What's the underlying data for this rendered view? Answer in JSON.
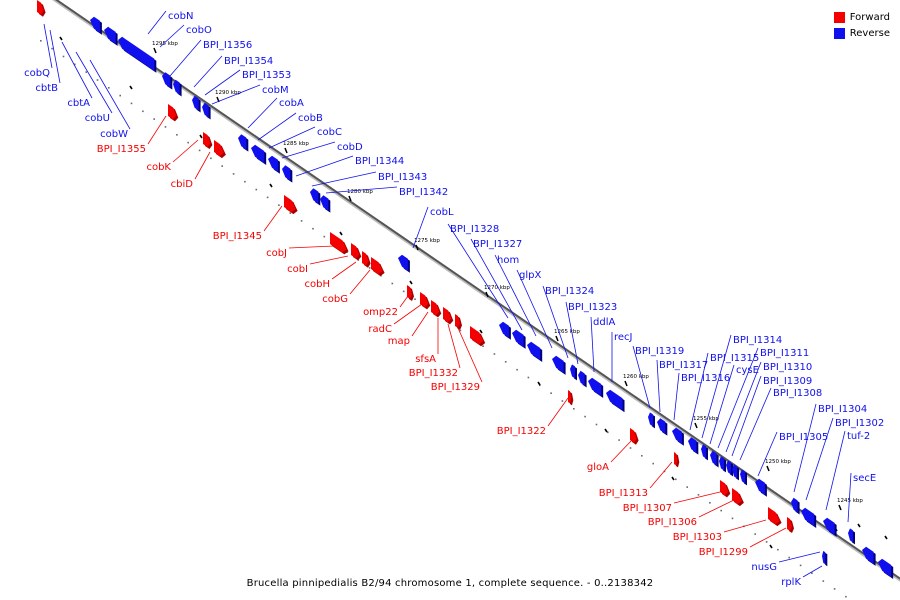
{
  "colors": {
    "forward": "#f50000",
    "reverse": "#1010ee",
    "axis": "#555555"
  },
  "legend": [
    {
      "label": "Forward",
      "color": "#f50000"
    },
    {
      "label": "Reverse",
      "color": "#1010ee"
    }
  ],
  "caption": "Brucella pinnipedialis B2/94 chromosome 1, complete sequence. - 0..2138342",
  "scale_labels": [
    "1295 kbp",
    "1290 kbp",
    "1285 kbp",
    "1280 kbp",
    "1275 kbp",
    "1270 kbp",
    "1265 kbp",
    "1260 kbp",
    "1255 kbp",
    "1250 kbp",
    "1245 kbp"
  ],
  "genes": [
    {
      "name": "cobQ",
      "strand": "reverse"
    },
    {
      "name": "cbtB",
      "strand": "reverse"
    },
    {
      "name": "cbtA",
      "strand": "reverse"
    },
    {
      "name": "cobU",
      "strand": "reverse"
    },
    {
      "name": "cobW",
      "strand": "reverse"
    },
    {
      "name": "cobN",
      "strand": "reverse"
    },
    {
      "name": "cobO",
      "strand": "reverse"
    },
    {
      "name": "BPI_I1356",
      "strand": "reverse"
    },
    {
      "name": "BPI_I1355",
      "strand": "forward"
    },
    {
      "name": "BPI_I1354",
      "strand": "reverse"
    },
    {
      "name": "BPI_I1353",
      "strand": "reverse"
    },
    {
      "name": "cobM",
      "strand": "reverse"
    },
    {
      "name": "cobK",
      "strand": "forward"
    },
    {
      "name": "cbiD",
      "strand": "forward"
    },
    {
      "name": "cobA",
      "strand": "reverse"
    },
    {
      "name": "cobB",
      "strand": "reverse"
    },
    {
      "name": "cobC",
      "strand": "reverse"
    },
    {
      "name": "cobD",
      "strand": "reverse"
    },
    {
      "name": "BPI_I1345",
      "strand": "forward"
    },
    {
      "name": "BPI_I1344",
      "strand": "reverse"
    },
    {
      "name": "BPI_I1343",
      "strand": "reverse"
    },
    {
      "name": "BPI_I1342",
      "strand": "reverse"
    },
    {
      "name": "cobJ",
      "strand": "forward"
    },
    {
      "name": "cobI",
      "strand": "forward"
    },
    {
      "name": "cobH",
      "strand": "forward"
    },
    {
      "name": "cobG",
      "strand": "forward"
    },
    {
      "name": "cobL",
      "strand": "reverse"
    },
    {
      "name": "omp22",
      "strand": "forward"
    },
    {
      "name": "radC",
      "strand": "forward"
    },
    {
      "name": "map",
      "strand": "forward"
    },
    {
      "name": "sfsA",
      "strand": "forward"
    },
    {
      "name": "BPI_I1332",
      "strand": "forward"
    },
    {
      "name": "BPI_I1329",
      "strand": "forward"
    },
    {
      "name": "BPI_I1328",
      "strand": "reverse"
    },
    {
      "name": "BPI_I1327",
      "strand": "reverse"
    },
    {
      "name": "hom",
      "strand": "reverse"
    },
    {
      "name": "glpX",
      "strand": "reverse"
    },
    {
      "name": "BPI_I1324",
      "strand": "reverse"
    },
    {
      "name": "BPI_I1323",
      "strand": "reverse"
    },
    {
      "name": "ddlA",
      "strand": "reverse"
    },
    {
      "name": "recJ",
      "strand": "reverse"
    },
    {
      "name": "BPI_I1322",
      "strand": "forward"
    },
    {
      "name": "BPI_I1319",
      "strand": "reverse"
    },
    {
      "name": "BPI_I1317",
      "strand": "reverse"
    },
    {
      "name": "BPI_I1316",
      "strand": "reverse"
    },
    {
      "name": "BPI_I1315",
      "strand": "reverse"
    },
    {
      "name": "BPI_I1314",
      "strand": "reverse"
    },
    {
      "name": "cysE",
      "strand": "reverse"
    },
    {
      "name": "BPI_I1311",
      "strand": "reverse"
    },
    {
      "name": "BPI_I1310",
      "strand": "reverse"
    },
    {
      "name": "BPI_I1309",
      "strand": "reverse"
    },
    {
      "name": "BPI_I1308",
      "strand": "reverse"
    },
    {
      "name": "gloA",
      "strand": "forward"
    },
    {
      "name": "BPI_I1313",
      "strand": "forward"
    },
    {
      "name": "BPI_I1307",
      "strand": "forward"
    },
    {
      "name": "BPI_I1306",
      "strand": "forward"
    },
    {
      "name": "BPI_I1305",
      "strand": "reverse"
    },
    {
      "name": "BPI_I1304",
      "strand": "reverse"
    },
    {
      "name": "BPI_I1302",
      "strand": "reverse"
    },
    {
      "name": "tuf-2",
      "strand": "reverse"
    },
    {
      "name": "BPI_I1303",
      "strand": "forward"
    },
    {
      "name": "BPI_I1299",
      "strand": "forward"
    },
    {
      "name": "secE",
      "strand": "reverse"
    },
    {
      "name": "nusG",
      "strand": "reverse"
    },
    {
      "name": "rplK",
      "strand": "reverse"
    }
  ]
}
